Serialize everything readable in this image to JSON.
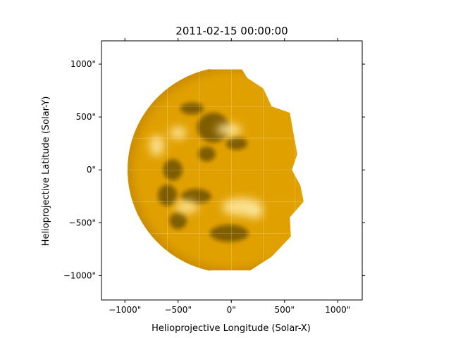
{
  "chart_data": {
    "type": "heatmap",
    "title": "2011-02-15 00:00:00",
    "xlabel": "Helioprojective Longitude (Solar-X)",
    "ylabel": "Helioprojective Latitude (Solar-Y)",
    "xlim": [
      -1220,
      1230
    ],
    "ylim": [
      -1230,
      1220
    ],
    "x_ticks": [
      -1000,
      -500,
      0,
      500,
      1000
    ],
    "y_ticks": [
      -1000,
      -500,
      0,
      500,
      1000
    ],
    "x_tick_labels": [
      "−1000\"",
      "−500\"",
      "0\"",
      "500\"",
      "1000\""
    ],
    "y_tick_labels": [
      "−1000\"",
      "−500\"",
      "0\"",
      "500\"",
      "1000\""
    ],
    "grid": true,
    "colormap": "sdoaia171",
    "colors": {
      "dark": "#1a0f00",
      "mid": "#c88a00",
      "base": "#e0a000",
      "bright": "#ffe9a0",
      "grid": "#ffffff"
    },
    "solar_disk": {
      "center": [
        0,
        0
      ],
      "radius_arcsec": 975
    },
    "visible_region": {
      "right_edge_outline": [
        [
          -200,
          950
        ],
        [
          100,
          950
        ],
        [
          150,
          870
        ],
        [
          300,
          770
        ],
        [
          380,
          600
        ],
        [
          550,
          540
        ],
        [
          580,
          370
        ],
        [
          620,
          150
        ],
        [
          570,
          0
        ],
        [
          650,
          -150
        ],
        [
          680,
          -300
        ],
        [
          550,
          -450
        ],
        [
          560,
          -630
        ],
        [
          380,
          -820
        ],
        [
          180,
          -950
        ],
        [
          -200,
          -950
        ]
      ]
    },
    "dark_regions": [
      {
        "x": -370,
        "y": 580,
        "rx": 110,
        "ry": 55
      },
      {
        "x": -170,
        "y": 400,
        "rx": 150,
        "ry": 140
      },
      {
        "x": -230,
        "y": 150,
        "rx": 80,
        "ry": 70
      },
      {
        "x": -550,
        "y": 0,
        "rx": 90,
        "ry": 100
      },
      {
        "x": -600,
        "y": -240,
        "rx": 90,
        "ry": 100
      },
      {
        "x": -330,
        "y": -250,
        "rx": 140,
        "ry": 70
      },
      {
        "x": -500,
        "y": -480,
        "rx": 80,
        "ry": 80
      },
      {
        "x": 50,
        "y": 250,
        "rx": 100,
        "ry": 60
      },
      {
        "x": -20,
        "y": -600,
        "rx": 180,
        "ry": 80
      }
    ],
    "bright_regions": [
      {
        "x": -20,
        "y": 380,
        "rx": 120,
        "ry": 60
      },
      {
        "x": -500,
        "y": 350,
        "rx": 80,
        "ry": 60
      },
      {
        "x": 100,
        "y": -350,
        "rx": 190,
        "ry": 85
      },
      {
        "x": -420,
        "y": -350,
        "rx": 110,
        "ry": 60
      },
      {
        "x": -700,
        "y": 230,
        "rx": 70,
        "ry": 100
      },
      {
        "x": 220,
        "y": -400,
        "rx": 80,
        "ry": 60
      }
    ]
  }
}
